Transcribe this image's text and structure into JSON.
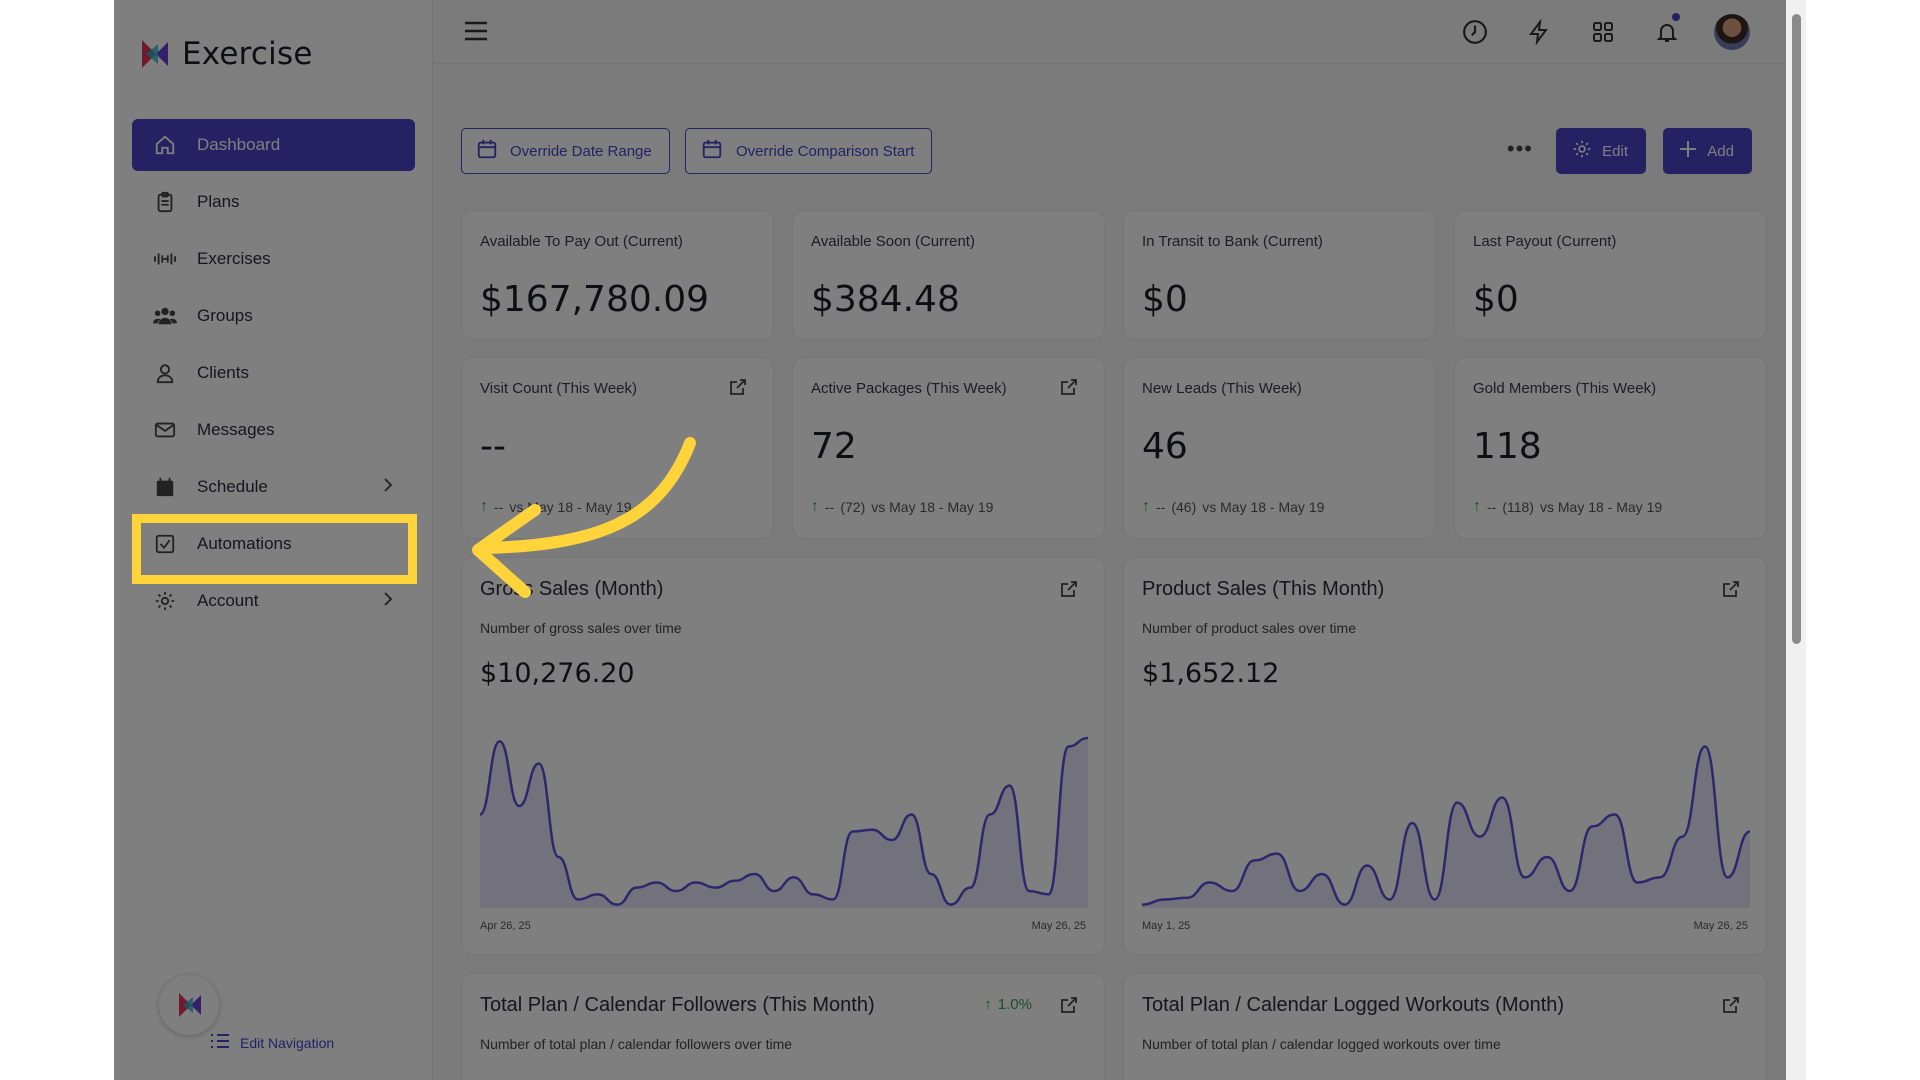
{
  "app": {
    "brand": "Exercise"
  },
  "sidebar": {
    "items": [
      {
        "label": "Dashboard",
        "icon": "home-icon"
      },
      {
        "label": "Plans",
        "icon": "clipboard-icon"
      },
      {
        "label": "Exercises",
        "icon": "dumbbell-icon"
      },
      {
        "label": "Groups",
        "icon": "users-icon"
      },
      {
        "label": "Clients",
        "icon": "user-icon"
      },
      {
        "label": "Messages",
        "icon": "mail-icon"
      },
      {
        "label": "Schedule",
        "icon": "calendar-icon"
      },
      {
        "label": "Automations",
        "icon": "checkbox-icon"
      },
      {
        "label": "Account",
        "icon": "gear-icon"
      }
    ],
    "edit_nav": "Edit Navigation"
  },
  "toolbar": {
    "override_date": "Override Date Range",
    "override_comparison": "Override Comparison Start",
    "edit": "Edit",
    "add": "Add"
  },
  "stats_row1": [
    {
      "label": "Available To Pay Out (Current)",
      "value": "$167,780.09"
    },
    {
      "label": "Available Soon (Current)",
      "value": "$384.48"
    },
    {
      "label": "In Transit to Bank (Current)",
      "value": "$0"
    },
    {
      "label": "Last Payout (Current)",
      "value": "$0"
    }
  ],
  "stats_row2": [
    {
      "label": "Visit Count (This Week)",
      "value": "--",
      "trend": "--",
      "compare": "vs May 18 - May 19",
      "prev": ""
    },
    {
      "label": "Active Packages (This Week)",
      "value": "72",
      "trend": "--",
      "prev": "(72)",
      "compare": "vs May 18 - May 19"
    },
    {
      "label": "New Leads (This Week)",
      "value": "46",
      "trend": "--",
      "prev": "(46)",
      "compare": "vs May 18 - May 19"
    },
    {
      "label": "Gold Members (This Week)",
      "value": "118",
      "trend": "--",
      "prev": "(118)",
      "compare": "vs May 18 - May 19"
    }
  ],
  "gross_sales": {
    "title": "Gross Sales (Month)",
    "subtitle": "Number of gross sales over time",
    "value": "$10,276.20",
    "x_start": "Apr 26, 25",
    "x_end": "May 26, 25"
  },
  "product_sales": {
    "title": "Product Sales (This Month)",
    "subtitle": "Number of product sales over time",
    "value": "$1,652.12",
    "x_start": "May 1, 25",
    "x_end": "May 26, 25"
  },
  "followers": {
    "title": "Total Plan / Calendar Followers (This Month)",
    "subtitle": "Number of total plan / calendar followers over time",
    "pct": "1.0%"
  },
  "logged": {
    "title": "Total Plan / Calendar Logged Workouts (Month)",
    "subtitle": "Number of total plan / calendar logged workouts over time"
  },
  "chart_data": [
    {
      "type": "area",
      "title": "Gross Sales (Month)",
      "series": [
        {
          "values": [
            0.55,
            0.98,
            0.6,
            0.85,
            0.3,
            0.05,
            0.08,
            0.02,
            0.12,
            0.15,
            0.1,
            0.15,
            0.12,
            0.16,
            0.2,
            0.1,
            0.18,
            0.08,
            0.05,
            0.45,
            0.46,
            0.4,
            0.55,
            0.2,
            0.02,
            0.12,
            0.55,
            0.72,
            0.1,
            0.08,
            0.95,
            1.0
          ]
        }
      ],
      "ylim": [
        0,
        1
      ]
    },
    {
      "type": "area",
      "title": "Product Sales (This Month)",
      "series": [
        {
          "values": [
            0.02,
            0.05,
            0.06,
            0.15,
            0.1,
            0.28,
            0.32,
            0.1,
            0.2,
            0.02,
            0.25,
            0.05,
            0.5,
            0.05,
            0.62,
            0.42,
            0.65,
            0.18,
            0.3,
            0.1,
            0.48,
            0.55,
            0.15,
            0.18,
            0.42,
            0.95,
            0.18,
            0.45
          ]
        }
      ],
      "ylim": [
        0,
        1
      ]
    }
  ]
}
